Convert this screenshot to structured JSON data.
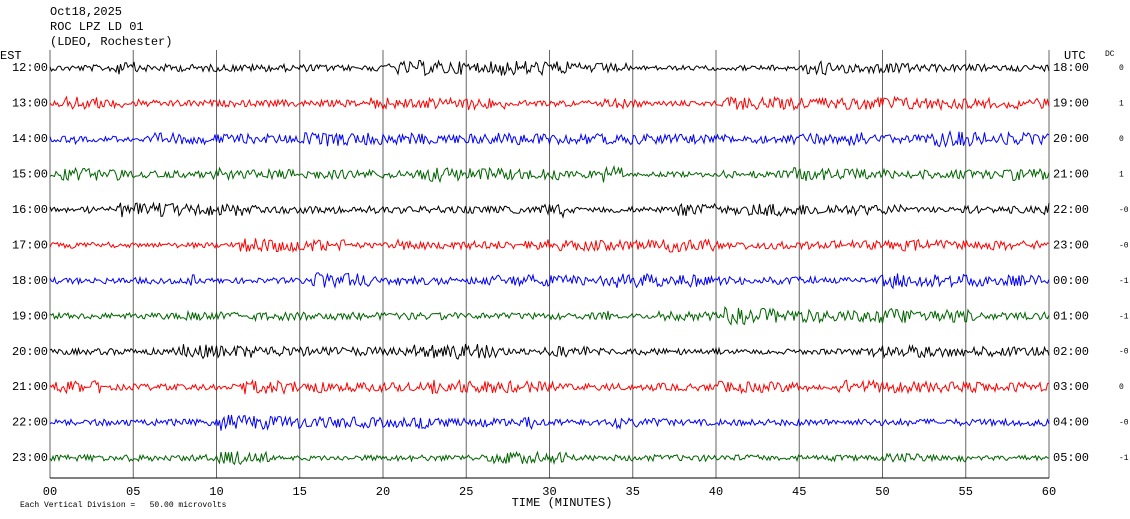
{
  "chart_data": {
    "type": "helicorder",
    "title_lines": [
      "Oct18,2025",
      "ROC LPZ LD 01",
      "(LDEO, Rochester)"
    ],
    "left_axis_label": "EST",
    "right_axis_label": "UTC",
    "dc_label": "DC",
    "xlabel": "TIME (MINUTES)",
    "footer": "Each Vertical Division =   50.00 microvolts",
    "xlim": [
      0,
      60
    ],
    "xticks": [
      {
        "value": 0,
        "label": "00"
      },
      {
        "value": 5,
        "label": "05"
      },
      10,
      15,
      20,
      25,
      30,
      35,
      40,
      45,
      50,
      55,
      60
    ],
    "grid": true,
    "rows": [
      {
        "est": "12:00",
        "utc": "18:00",
        "dc": "0",
        "color": "#000000"
      },
      {
        "est": "13:00",
        "utc": "19:00",
        "dc": "1",
        "color": "#ff0000"
      },
      {
        "est": "14:00",
        "utc": "20:00",
        "dc": "0",
        "color": "#0000ff"
      },
      {
        "est": "15:00",
        "utc": "21:00",
        "dc": "1",
        "color": "#006400"
      },
      {
        "est": "16:00",
        "utc": "22:00",
        "dc": "-0",
        "color": "#000000"
      },
      {
        "est": "17:00",
        "utc": "23:00",
        "dc": "-0",
        "color": "#ff0000"
      },
      {
        "est": "18:00",
        "utc": "00:00",
        "dc": "-1",
        "color": "#0000ff"
      },
      {
        "est": "19:00",
        "utc": "01:00",
        "dc": "-1",
        "color": "#006400"
      },
      {
        "est": "20:00",
        "utc": "02:00",
        "dc": "-0",
        "color": "#000000"
      },
      {
        "est": "21:00",
        "utc": "03:00",
        "dc": "0",
        "color": "#ff0000"
      },
      {
        "est": "22:00",
        "utc": "04:00",
        "dc": "-0",
        "color": "#0000ff"
      },
      {
        "est": "23:00",
        "utc": "05:00",
        "dc": "-1",
        "color": "#006400"
      }
    ]
  }
}
